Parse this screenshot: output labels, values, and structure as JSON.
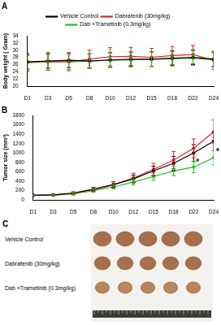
{
  "chart_data": [
    {
      "type": "line",
      "title": "A",
      "y_label": "Body weight ( Gram)",
      "categories": [
        "D1",
        "D3",
        "D5",
        "D8",
        "D10",
        "D12",
        "D15",
        "D18",
        "D22",
        "D24"
      ],
      "series": [
        {
          "name": "Vehicle Control",
          "color": "#000000",
          "values": [
            26.8,
            27.0,
            27.2,
            27.0,
            27.3,
            27.5,
            27.5,
            27.8,
            28.0,
            27.5
          ],
          "errors": [
            2.0,
            2.0,
            2.0,
            2.0,
            2.0,
            2.0,
            2.0,
            2.0,
            2.0,
            2.0
          ]
        },
        {
          "name": "Dabrafenib (30mg/kg)",
          "color": "#e8202a",
          "values": [
            26.7,
            26.9,
            26.8,
            27.5,
            28.2,
            28.3,
            28.0,
            28.5,
            28.8,
            27.2
          ],
          "errors": [
            2.5,
            2.5,
            2.5,
            2.5,
            2.5,
            2.5,
            2.5,
            2.5,
            2.5,
            2.5
          ]
        },
        {
          "name": "Dab +Trametinib (0.3mg/kg)",
          "color": "#22c02a",
          "values": [
            26.5,
            26.8,
            26.7,
            27.0,
            27.2,
            27.3,
            27.5,
            27.6,
            27.8,
            27.3
          ],
          "errors": [
            2.0,
            2.0,
            2.0,
            2.0,
            2.0,
            2.0,
            2.0,
            2.0,
            2.0,
            2.0
          ]
        }
      ],
      "ylim": [
        20,
        34
      ],
      "yticks": [
        20,
        22,
        24,
        26,
        28,
        30,
        32,
        34
      ],
      "grid": false,
      "legend": "top",
      "marker": "circle"
    },
    {
      "type": "line",
      "title": "B",
      "y_label": "Tumor size (mm³)",
      "categories": [
        "D1",
        "D3",
        "D5",
        "D8",
        "D10",
        "D12",
        "D15",
        "D18",
        "D22",
        "D24"
      ],
      "series": [
        {
          "name": "Vehicle Control",
          "color": "#000000",
          "values": [
            100,
            110,
            150,
            230,
            330,
            450,
            620,
            780,
            1000,
            1250
          ],
          "errors": [
            10,
            15,
            20,
            40,
            60,
            80,
            100,
            150,
            180,
            200
          ]
        },
        {
          "name": "Dabrafenib (30mg/kg)",
          "color": "#e8202a",
          "values": [
            100,
            110,
            140,
            220,
            320,
            470,
            650,
            850,
            1100,
            1450
          ],
          "errors": [
            10,
            15,
            30,
            50,
            70,
            100,
            130,
            180,
            200,
            250
          ]
        },
        {
          "name": "Dab +Trametinib (0.3mg/kg)",
          "color": "#22c02a",
          "values": [
            100,
            100,
            130,
            200,
            280,
            380,
            500,
            620,
            700,
            900
          ],
          "errors": [
            10,
            10,
            20,
            30,
            40,
            60,
            80,
            100,
            120,
            150
          ]
        }
      ],
      "ylim": [
        0,
        1800
      ],
      "yticks": [
        0,
        200,
        400,
        600,
        800,
        1000,
        1200,
        1400,
        1600,
        1800
      ],
      "grid": false,
      "marker": "circle",
      "annotations": [
        {
          "text": "*",
          "series": "Dab +Trametinib (0.3mg/kg)",
          "category": "D22"
        },
        {
          "text": "*",
          "series": "Dab +Trametinib (0.3mg/kg)",
          "category": "D24"
        }
      ]
    }
  ],
  "photo": {
    "title": "C",
    "rows": [
      {
        "label": "Vehicle Control",
        "count": 5
      },
      {
        "label": "Dabrafenib (30mg/kg)",
        "count": 5
      },
      {
        "label": "Dab +Trametinib (0.3mg/kg)",
        "count": 5
      }
    ]
  }
}
